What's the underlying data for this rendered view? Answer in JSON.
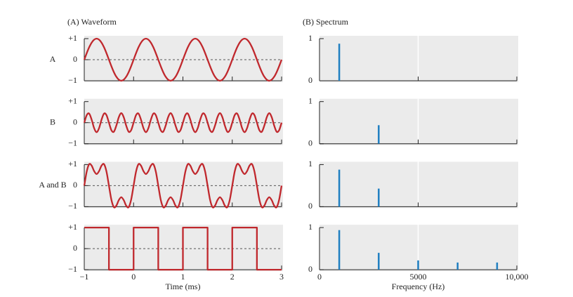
{
  "chart_data": [
    {
      "type": "line",
      "title": "(A) Waveform",
      "label": "A",
      "smooth": true,
      "color": "#c0282d",
      "x": [
        -1,
        -0.95,
        -0.9,
        -0.85,
        -0.8,
        -0.75,
        -0.7,
        -0.65,
        -0.6,
        -0.55,
        -0.5,
        -0.45,
        -0.4,
        -0.35,
        -0.3,
        -0.25,
        -0.2,
        -0.15,
        -0.1,
        -0.05,
        0,
        0.05,
        0.1,
        0.15,
        0.2,
        0.25,
        0.3,
        0.35,
        0.4,
        0.45,
        0.5,
        0.55,
        0.6,
        0.65,
        0.7,
        0.75,
        0.8,
        0.85,
        0.9,
        0.95,
        1,
        1.05,
        1.1,
        1.15,
        1.2,
        1.25,
        1.3,
        1.35,
        1.4,
        1.45,
        1.5,
        1.55,
        1.6,
        1.65,
        1.7,
        1.75,
        1.8,
        1.85,
        1.9,
        1.95,
        2,
        2.05,
        2.1,
        2.15,
        2.2,
        2.25,
        2.3,
        2.35,
        2.4,
        2.45,
        2.5,
        2.55,
        2.6,
        2.65,
        2.7,
        2.75,
        2.8,
        2.85,
        2.9,
        2.95,
        3
      ],
      "values": [
        0,
        0.31,
        0.59,
        0.81,
        0.95,
        1,
        0.95,
        0.81,
        0.59,
        0.31,
        0,
        -0.31,
        -0.59,
        -0.81,
        -0.95,
        -1,
        -0.95,
        -0.81,
        -0.59,
        -0.31,
        0,
        0.31,
        0.59,
        0.81,
        0.95,
        1,
        0.95,
        0.81,
        0.59,
        0.31,
        0,
        -0.31,
        -0.59,
        -0.81,
        -0.95,
        -1,
        -0.95,
        -0.81,
        -0.59,
        -0.31,
        0,
        0.31,
        0.59,
        0.81,
        0.95,
        1,
        0.95,
        0.81,
        0.59,
        0.31,
        0,
        -0.31,
        -0.59,
        -0.81,
        -0.95,
        -1,
        -0.95,
        -0.81,
        -0.59,
        -0.31,
        0,
        0.31,
        0.59,
        0.81,
        0.95,
        1,
        0.95,
        0.81,
        0.59,
        0.31,
        0,
        -0.31,
        -0.59,
        -0.81,
        -0.95,
        -1,
        -0.95,
        -0.81,
        -0.59,
        -0.31,
        0
      ],
      "xlim": [
        -1,
        3
      ],
      "ylim": [
        -1,
        1
      ],
      "xticks": [
        -1,
        0,
        1,
        2,
        3
      ],
      "xtick_labels": false,
      "yticks": [
        {
          "value": 1,
          "label": "+1"
        },
        0,
        {
          "value": -1,
          "label": "−1"
        }
      ]
    },
    {
      "type": "line",
      "label": "B",
      "smooth": true,
      "color": "#c0282d",
      "x": [
        -1,
        -0.95,
        -0.9,
        -0.85,
        -0.8,
        -0.75,
        -0.7,
        -0.65,
        -0.6,
        -0.55,
        -0.5,
        -0.45,
        -0.4,
        -0.35,
        -0.3,
        -0.25,
        -0.2,
        -0.15,
        -0.1,
        -0.05,
        0,
        0.05,
        0.1,
        0.15,
        0.2,
        0.25,
        0.3,
        0.35,
        0.4,
        0.45,
        0.5,
        0.55,
        0.6,
        0.65,
        0.7,
        0.75,
        0.8,
        0.85,
        0.9,
        0.95,
        1,
        1.05,
        1.1,
        1.15,
        1.2,
        1.25,
        1.3,
        1.35,
        1.4,
        1.45,
        1.5,
        1.55,
        1.6,
        1.65,
        1.7,
        1.75,
        1.8,
        1.85,
        1.9,
        1.95,
        2,
        2.05,
        2.1,
        2.15,
        2.2,
        2.25,
        2.3,
        2.35,
        2.4,
        2.45,
        2.5,
        2.55,
        2.6,
        2.65,
        2.7,
        2.75,
        2.8,
        2.85,
        2.9,
        2.95,
        3
      ],
      "values": [
        0,
        0.36,
        0.43,
        0.14,
        -0.26,
        -0.45,
        -0.26,
        0.14,
        0.43,
        0.36,
        0,
        -0.36,
        -0.43,
        -0.14,
        0.26,
        0.45,
        0.26,
        -0.14,
        -0.43,
        -0.36,
        0,
        0.36,
        0.43,
        0.14,
        -0.26,
        -0.45,
        -0.26,
        0.14,
        0.43,
        0.36,
        0,
        -0.36,
        -0.43,
        -0.14,
        0.26,
        0.45,
        0.26,
        -0.14,
        -0.43,
        -0.36,
        0,
        0.36,
        0.43,
        0.14,
        -0.26,
        -0.45,
        -0.26,
        0.14,
        0.43,
        0.36,
        0,
        -0.36,
        -0.43,
        -0.14,
        0.26,
        0.45,
        0.26,
        -0.14,
        -0.43,
        -0.36,
        0,
        0.36,
        0.43,
        0.14,
        -0.26,
        -0.45,
        -0.26,
        0.14,
        0.43,
        0.36,
        0,
        -0.36,
        -0.43,
        -0.14,
        0.26,
        0.45,
        0.26,
        -0.14,
        -0.43,
        -0.36,
        0
      ],
      "xlim": [
        -1,
        3
      ],
      "ylim": [
        -1,
        1
      ],
      "xticks": [
        -1,
        0,
        1,
        2,
        3
      ],
      "xtick_labels": false,
      "yticks": [
        {
          "value": 1,
          "label": "+1"
        },
        0,
        {
          "value": -1,
          "label": "−1"
        }
      ]
    },
    {
      "type": "line",
      "label": "A and B",
      "smooth": true,
      "color": "#c0282d",
      "x": [
        -1,
        -0.95,
        -0.9,
        -0.85,
        -0.8,
        -0.75,
        -0.7,
        -0.65,
        -0.6,
        -0.55,
        -0.5,
        -0.45,
        -0.4,
        -0.35,
        -0.3,
        -0.25,
        -0.2,
        -0.15,
        -0.1,
        -0.05,
        0,
        0.05,
        0.1,
        0.15,
        0.2,
        0.25,
        0.3,
        0.35,
        0.4,
        0.45,
        0.5,
        0.55,
        0.6,
        0.65,
        0.7,
        0.75,
        0.8,
        0.85,
        0.9,
        0.95,
        1,
        1.05,
        1.1,
        1.15,
        1.2,
        1.25,
        1.3,
        1.35,
        1.4,
        1.45,
        1.5,
        1.55,
        1.6,
        1.65,
        1.7,
        1.75,
        1.8,
        1.85,
        1.9,
        1.95,
        2,
        2.05,
        2.1,
        2.15,
        2.2,
        2.25,
        2.3,
        2.35,
        2.4,
        2.45,
        2.5,
        2.55,
        2.6,
        2.65,
        2.7,
        2.75,
        2.8,
        2.85,
        2.9,
        2.95,
        3
      ],
      "values": [
        0,
        0.67,
        1.02,
        0.95,
        0.69,
        0.55,
        0.69,
        0.95,
        1.02,
        0.67,
        0,
        -0.67,
        -1.02,
        -0.95,
        -0.69,
        -0.55,
        -0.69,
        -0.95,
        -1.02,
        -0.67,
        0,
        0.67,
        1.02,
        0.95,
        0.69,
        0.55,
        0.69,
        0.95,
        1.02,
        0.67,
        0,
        -0.67,
        -1.02,
        -0.95,
        -0.69,
        -0.55,
        -0.69,
        -0.95,
        -1.02,
        -0.67,
        0,
        0.67,
        1.02,
        0.95,
        0.69,
        0.55,
        0.69,
        0.95,
        1.02,
        0.67,
        0,
        -0.67,
        -1.02,
        -0.95,
        -0.69,
        -0.55,
        -0.69,
        -0.95,
        -1.02,
        -0.67,
        0,
        0.67,
        1.02,
        0.95,
        0.69,
        0.55,
        0.69,
        0.95,
        1.02,
        0.67,
        0,
        -0.67,
        -1.02,
        -0.95,
        -0.69,
        -0.55,
        -0.69,
        -0.95,
        -1.02,
        -0.67,
        0
      ],
      "xlim": [
        -1,
        3
      ],
      "ylim": [
        -1,
        1
      ],
      "xticks": [
        -1,
        0,
        1,
        2,
        3
      ],
      "xtick_labels": false,
      "yticks": [
        {
          "value": 1,
          "label": "+1"
        },
        0,
        {
          "value": -1,
          "label": "−1"
        }
      ]
    },
    {
      "type": "line",
      "smooth": false,
      "color": "#c0282d",
      "xlabel": "Time (ms)",
      "x": [
        -1,
        -0.5,
        -0.5,
        0,
        0,
        0.5,
        0.5,
        1,
        1,
        1.5,
        1.5,
        2,
        2,
        2.5,
        2.5,
        3
      ],
      "values": [
        1,
        1,
        -1,
        -1,
        1,
        1,
        -1,
        -1,
        1,
        1,
        -1,
        -1,
        1,
        1,
        -1,
        -1
      ],
      "xlim": [
        -1,
        3
      ],
      "ylim": [
        -1,
        1
      ],
      "xticks": [
        {
          "value": -1,
          "label": "−1"
        },
        0,
        1,
        2,
        3
      ],
      "xtick_labels": true,
      "yticks": [
        {
          "value": 1,
          "label": "+1"
        },
        0,
        {
          "value": -1,
          "label": "−1"
        }
      ]
    },
    {
      "type": "stem",
      "title": "(B) Spectrum",
      "color": "#1f7fc1",
      "grid": true,
      "x": [
        1000
      ],
      "values": [
        0.88
      ],
      "xlim": [
        0,
        10000
      ],
      "ylim": [
        0,
        1
      ],
      "xticks": [
        0,
        5000,
        10000
      ],
      "xtick_labels": false,
      "yticks": [
        1,
        0
      ]
    },
    {
      "type": "stem",
      "color": "#1f7fc1",
      "grid": true,
      "x": [
        3000
      ],
      "values": [
        0.44
      ],
      "xlim": [
        0,
        10000
      ],
      "ylim": [
        0,
        1
      ],
      "xticks": [
        0,
        5000,
        10000
      ],
      "xtick_labels": false,
      "yticks": [
        1,
        0
      ]
    },
    {
      "type": "stem",
      "color": "#1f7fc1",
      "grid": true,
      "x": [
        1000,
        3000
      ],
      "values": [
        0.88,
        0.43
      ],
      "xlim": [
        0,
        10000
      ],
      "ylim": [
        0,
        1
      ],
      "xticks": [
        0,
        5000,
        10000
      ],
      "xtick_labels": false,
      "yticks": [
        1,
        0
      ]
    },
    {
      "type": "stem",
      "color": "#1f7fc1",
      "grid": true,
      "xlabel": "Frequency (Hz)",
      "x": [
        1000,
        3000,
        5000,
        7000,
        9000
      ],
      "values": [
        0.94,
        0.4,
        0.22,
        0.17,
        0.17
      ],
      "xlim": [
        0,
        10000
      ],
      "ylim": [
        0,
        1
      ],
      "xticks": [
        0,
        5000,
        {
          "value": 10000,
          "label": "10,000"
        }
      ],
      "xtick_labels": true,
      "yticks": [
        1,
        0
      ]
    }
  ]
}
